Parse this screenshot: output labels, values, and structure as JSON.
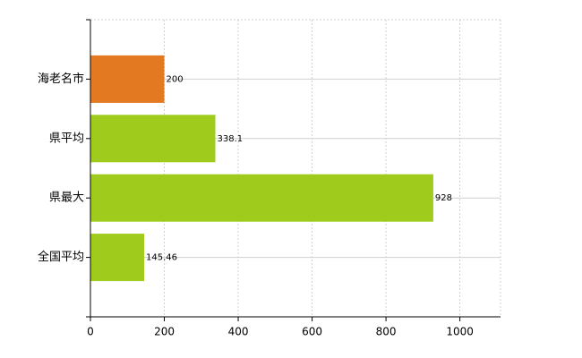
{
  "chart_data": {
    "type": "barh",
    "categories": [
      "海老名市",
      "県平均",
      "県最大",
      "全国平均"
    ],
    "values": [
      200,
      338.1,
      928,
      145.46
    ],
    "colors": [
      "#e37a22",
      "#9fcc1c",
      "#9fcc1c",
      "#9fcc1c"
    ],
    "xlim": [
      0,
      1110
    ],
    "xticks": [
      0,
      200,
      400,
      600,
      800,
      1000
    ],
    "grid": true
  }
}
